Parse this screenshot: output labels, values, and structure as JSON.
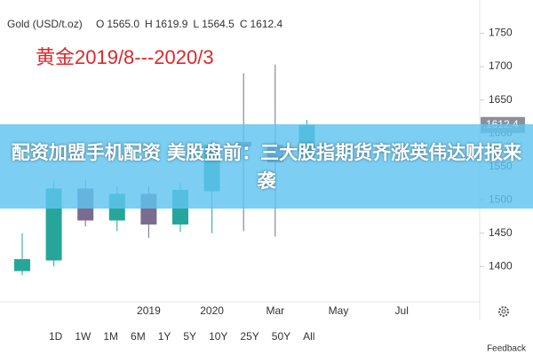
{
  "chart_data": {
    "type": "candlestick",
    "symbol": "Gold (USD/t.oz)",
    "legend_items": [
      {
        "key": "O",
        "value": {
          "value": 1565,
          "label": "1565.0"
        }
      },
      {
        "key": "H",
        "value": 1619.9
      },
      {
        "key": "L",
        "value": 1564.5
      },
      {
        "key": "C",
        "value": 1612.4
      }
    ],
    "annotation": "黄金2019/8---2020/3",
    "banner": "配资加盟手机配资 美股盘前：三大股指期货齐涨英伟达财报来袭",
    "categories": [
      null,
      null,
      null,
      null,
      "2019",
      null,
      "2020",
      null,
      "Mar",
      null,
      "May",
      null,
      "Jul"
    ],
    "open": [
      1393,
      1409,
      1517,
      1469,
      1509,
      1463,
      1513,
      1587,
      1583,
      1565,
      null,
      null,
      null
    ],
    "high": [
      1450,
      1529,
      1530,
      1520,
      1520,
      1525,
      1590,
      1690,
      1703,
      1619.9,
      null,
      null,
      null
    ],
    "low": [
      1387,
      1400,
      1460,
      1453,
      1443,
      1452,
      1450,
      1453,
      1445,
      1564.5,
      null,
      null,
      null
    ],
    "close": [
      1411,
      1517,
      1469,
      1509,
      1463,
      1515,
      1583,
      1580,
      1556,
      1612.4,
      null,
      null,
      null
    ],
    "up_color": "#26a69a",
    "down_color": "#7b6b8f",
    "last_price": 1612.4,
    "ylim": [
      1347,
      1800
    ],
    "yticks": [
      1400,
      1450,
      1500,
      1550,
      1600,
      1650,
      1700,
      1750
    ],
    "ranges": [
      "1D",
      "1W",
      "1M",
      "6M",
      "1Y",
      "5Y",
      "10Y",
      "25Y",
      "50Y",
      "All"
    ],
    "feedback": "Feedback"
  }
}
